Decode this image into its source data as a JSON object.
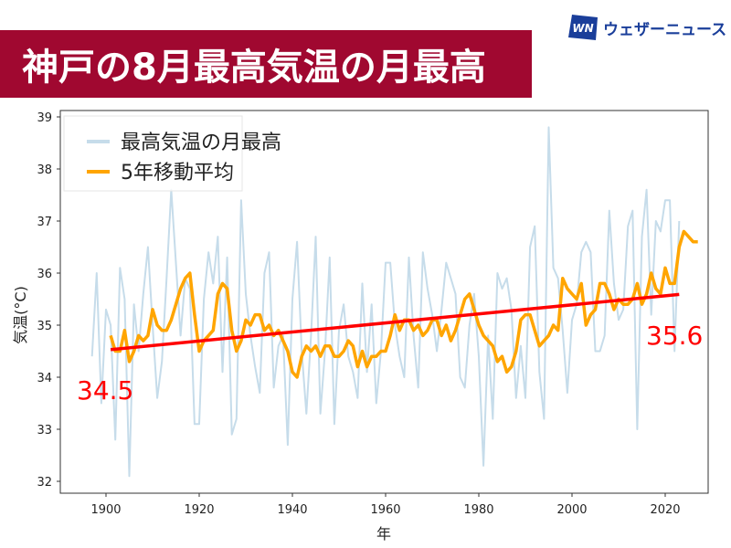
{
  "header": {
    "title": "神戸の8月最高気温の月最高",
    "banner_color": "#a00830"
  },
  "logo": {
    "mark": "WN",
    "text": "ウェザーニュース",
    "color": "#1a3e9a"
  },
  "chart_data": {
    "type": "line",
    "title": "神戸の8月最高気温の月最高",
    "xlabel": "年",
    "ylabel": "気温(°C)",
    "xlim": [
      1890,
      2030
    ],
    "ylim": [
      31.8,
      39.1
    ],
    "xticks": [
      1900,
      1920,
      1940,
      1960,
      1980,
      2000,
      2020
    ],
    "yticks": [
      32,
      33,
      34,
      35,
      36,
      37,
      38,
      39
    ],
    "legend_position": "top-left",
    "grid": false,
    "series": [
      {
        "name": "最高気温の月最高",
        "color": "#c6dcea",
        "x_start": 1897,
        "values": [
          34.4,
          36.0,
          33.5,
          35.3,
          35.0,
          32.8,
          36.1,
          35.5,
          32.1,
          35.4,
          34.5,
          35.6,
          36.5,
          35.0,
          33.6,
          34.3,
          35.9,
          37.6,
          36.2,
          34.8,
          35.9,
          35.7,
          33.1,
          33.1,
          35.5,
          36.4,
          35.8,
          36.7,
          34.1,
          36.3,
          32.9,
          33.2,
          37.4,
          35.6,
          34.8,
          34.2,
          33.7,
          36.0,
          36.4,
          33.8,
          34.6,
          34.8,
          32.7,
          35.5,
          36.6,
          34.5,
          33.3,
          34.8,
          36.7,
          33.3,
          34.5,
          36.3,
          33.1,
          34.9,
          35.4,
          34.4,
          34.1,
          33.6,
          35.8,
          34.1,
          35.4,
          33.5,
          34.5,
          36.2,
          36.2,
          35.0,
          34.4,
          34.0,
          36.3,
          34.8,
          33.8,
          36.4,
          35.7,
          35.2,
          34.5,
          35.3,
          36.2,
          35.9,
          35.6,
          34.0,
          33.8,
          35.0,
          35.6,
          34.4,
          32.3,
          34.8,
          33.2,
          36.0,
          35.7,
          35.9,
          35.3,
          33.6,
          34.6,
          33.6,
          36.5,
          36.9,
          34.1,
          33.2,
          38.8,
          36.1,
          35.9,
          34.9,
          33.7,
          35.1,
          35.4,
          36.4,
          36.6,
          36.4,
          34.5,
          34.5,
          34.8,
          37.2,
          35.8,
          35.1,
          35.3,
          36.9,
          37.2,
          33.0,
          36.7,
          37.6,
          35.2,
          37.0,
          36.8,
          37.4,
          37.4,
          34.5,
          37.0
        ],
        "ymin_note": ""
      },
      {
        "name": "5年移動平均",
        "color": "#ffa500",
        "x_start": 1901,
        "values": [
          34.8,
          34.5,
          34.5,
          34.9,
          34.3,
          34.5,
          34.8,
          34.7,
          34.8,
          35.3,
          35.0,
          34.9,
          34.9,
          35.1,
          35.4,
          35.7,
          35.9,
          36.0,
          35.2,
          34.5,
          34.7,
          34.8,
          34.9,
          35.6,
          35.8,
          35.7,
          34.9,
          34.5,
          34.7,
          35.1,
          35.0,
          35.2,
          35.2,
          34.9,
          35.0,
          34.8,
          34.9,
          34.7,
          34.5,
          34.1,
          34.0,
          34.4,
          34.6,
          34.5,
          34.6,
          34.4,
          34.6,
          34.6,
          34.4,
          34.4,
          34.5,
          34.7,
          34.6,
          34.2,
          34.5,
          34.2,
          34.4,
          34.4,
          34.5,
          34.5,
          34.8,
          35.2,
          34.9,
          35.1,
          35.1,
          34.9,
          35.0,
          34.8,
          34.9,
          35.1,
          35.1,
          34.8,
          35.0,
          34.7,
          34.9,
          35.2,
          35.5,
          35.6,
          35.3,
          35.0,
          34.8,
          34.7,
          34.6,
          34.3,
          34.4,
          34.1,
          34.2,
          34.5,
          35.1,
          35.2,
          35.2,
          34.9,
          34.6,
          34.7,
          34.8,
          35.0,
          34.9,
          35.9,
          35.7,
          35.6,
          35.5,
          35.8,
          35.0,
          35.2,
          35.3,
          35.8,
          35.8,
          35.6,
          35.3,
          35.5,
          35.4,
          35.4,
          35.5,
          35.8,
          35.4,
          35.6,
          36.0,
          35.7,
          35.6,
          36.1,
          35.8,
          35.8,
          36.5,
          36.8,
          36.7,
          36.6,
          36.6
        ]
      },
      {
        "name": "trend",
        "color": "#ff0000",
        "x": [
          1901,
          2023
        ],
        "values": [
          34.53,
          35.59
        ]
      }
    ],
    "annotations": [
      {
        "text": "34.5",
        "year": 1901,
        "value": 34.5
      },
      {
        "text": "35.6",
        "year": 2023,
        "value": 35.6
      }
    ],
    "legend": [
      "最高気温の月最高",
      "5年移動平均"
    ]
  }
}
